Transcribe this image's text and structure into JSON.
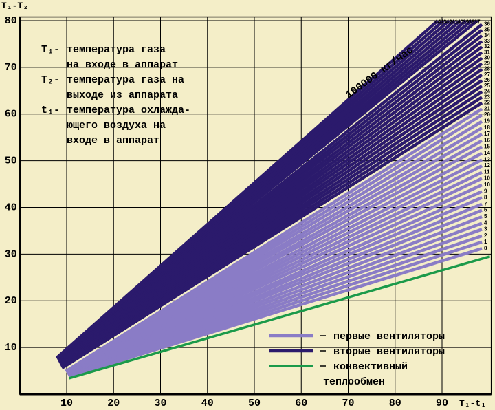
{
  "chart_data": {
    "type": "line",
    "y_axis_label": "T₁-T₂",
    "x_axis_label": "T₁-t₁",
    "xlim": [
      0,
      100.5
    ],
    "ylim": [
      0,
      80.8
    ],
    "xticks": [
      10,
      20,
      30,
      40,
      50,
      60,
      70,
      80,
      90
    ],
    "yticks": [
      10,
      20,
      30,
      40,
      50,
      60,
      70,
      80
    ],
    "grid": true,
    "flow_label": "100000 кг/час",
    "annotations": [
      {
        "term": "T₁-",
        "lines": [
          "температура газа",
          "на входе в аппарат"
        ]
      },
      {
        "term": "T₂-",
        "lines": [
          "температура газа на",
          "выходе из аппарата"
        ]
      },
      {
        "term": "t₁-",
        "lines": [
          "температура охлажда-",
          "ющего воздуха на",
          "входе в аппарат"
        ]
      }
    ],
    "groups": [
      {
        "legend_lines": [
          "первые вентиляторы"
        ],
        "color": "#8a7cc6",
        "lines": [
          {
            "label": "0",
            "x": [
              10.5,
              98.5
            ],
            "y": [
              3.8,
              31.2
            ]
          },
          {
            "label": "1",
            "x": [
              10.5,
              98.5
            ],
            "y": [
              3.8,
              32.6
            ]
          },
          {
            "label": "2",
            "x": [
              10.5,
              98.5
            ],
            "y": [
              3.9,
              33.9
            ]
          },
          {
            "label": "3",
            "x": [
              10.5,
              98.5
            ],
            "y": [
              3.9,
              35.3
            ]
          },
          {
            "label": "4",
            "x": [
              10.4,
              98.5
            ],
            "y": [
              4.0,
              36.6
            ]
          },
          {
            "label": "5",
            "x": [
              10.4,
              98.5
            ],
            "y": [
              4.0,
              38.0
            ]
          },
          {
            "label": "6",
            "x": [
              10.4,
              98.5
            ],
            "y": [
              4.1,
              39.4
            ]
          },
          {
            "label": "7",
            "x": [
              10.3,
              98.5
            ],
            "y": [
              4.1,
              40.7
            ]
          },
          {
            "label": "8",
            "x": [
              10.3,
              98.5
            ],
            "y": [
              4.2,
              42.1
            ]
          },
          {
            "label": "9",
            "x": [
              10.3,
              98.5
            ],
            "y": [
              4.2,
              43.4
            ]
          },
          {
            "label": "10",
            "x": [
              10.2,
              98.5
            ],
            "y": [
              4.3,
              44.8
            ]
          },
          {
            "label": "10",
            "x": [
              10.2,
              98.5
            ],
            "y": [
              4.3,
              46.2
            ]
          },
          {
            "label": "11",
            "x": [
              10.2,
              98.5
            ],
            "y": [
              4.4,
              47.5
            ]
          },
          {
            "label": "12",
            "x": [
              10.1,
              98.5
            ],
            "y": [
              4.4,
              48.9
            ]
          },
          {
            "label": "13",
            "x": [
              10.1,
              98.5
            ],
            "y": [
              4.5,
              50.2
            ]
          },
          {
            "label": "14",
            "x": [
              10.1,
              98.5
            ],
            "y": [
              4.5,
              51.6
            ]
          },
          {
            "label": "15",
            "x": [
              10.0,
              98.5
            ],
            "y": [
              4.6,
              53.0
            ]
          },
          {
            "label": "16",
            "x": [
              10.0,
              98.5
            ],
            "y": [
              4.6,
              54.3
            ]
          },
          {
            "label": "17",
            "x": [
              10.0,
              98.5
            ],
            "y": [
              4.7,
              55.7
            ]
          },
          {
            "label": "18",
            "x": [
              9.9,
              98.5
            ],
            "y": [
              4.7,
              57.0
            ]
          },
          {
            "label": "19",
            "x": [
              9.9,
              98.5
            ],
            "y": [
              4.8,
              58.4
            ]
          },
          {
            "label": "20",
            "x": [
              9.9,
              98.5
            ],
            "y": [
              4.8,
              59.8
            ]
          },
          {
            "label": "21",
            "x": [
              9.8,
              98.5
            ],
            "y": [
              4.9,
              61.1
            ]
          }
        ]
      },
      {
        "legend_lines": [
          "вторые вентиляторы"
        ],
        "color": "#2b1a6c",
        "lines": [
          {
            "label": "22",
            "x": [
              9.0,
              98.5
            ],
            "y": [
              5.6,
              62.4
            ]
          },
          {
            "label": "23",
            "x": [
              9.0,
              98.5
            ],
            "y": [
              5.7,
              63.6
            ]
          },
          {
            "label": "24",
            "x": [
              8.9,
              98.5
            ],
            "y": [
              5.8,
              64.8
            ]
          },
          {
            "label": "25",
            "x": [
              8.9,
              98.5
            ],
            "y": [
              5.9,
              66.0
            ]
          },
          {
            "label": "26",
            "x": [
              8.8,
              98.5
            ],
            "y": [
              6.0,
              67.2
            ]
          },
          {
            "label": "27",
            "x": [
              8.8,
              98.5
            ],
            "y": [
              6.1,
              68.4
            ]
          },
          {
            "label": "28",
            "x": [
              8.7,
              98.5
            ],
            "y": [
              6.2,
              69.6
            ]
          },
          {
            "label": "29",
            "x": [
              8.7,
              98.5
            ],
            "y": [
              6.3,
              70.8
            ]
          },
          {
            "label": "30",
            "x": [
              8.6,
              98.5
            ],
            "y": [
              6.4,
              72.0
            ]
          },
          {
            "label": "31",
            "x": [
              8.6,
              98.5
            ],
            "y": [
              6.5,
              73.2
            ]
          },
          {
            "label": "32",
            "x": [
              8.5,
              98.5
            ],
            "y": [
              6.6,
              74.4
            ]
          },
          {
            "label": "33",
            "x": [
              8.5,
              98.5
            ],
            "y": [
              6.7,
              75.6
            ]
          },
          {
            "label": "34",
            "x": [
              8.4,
              98.5
            ],
            "y": [
              6.8,
              76.8
            ]
          },
          {
            "label": "35",
            "x": [
              8.4,
              98.5
            ],
            "y": [
              6.9,
              78.0
            ]
          },
          {
            "label": "36",
            "x": [
              8.3,
              98.5
            ],
            "y": [
              7.0,
              79.2
            ]
          },
          {
            "label": "37",
            "x": [
              8.3,
              97.5
            ],
            "y": [
              7.1,
              80
            ]
          },
          {
            "label": "38",
            "x": [
              8.2,
              96.3
            ],
            "y": [
              7.2,
              80
            ]
          },
          {
            "label": "39",
            "x": [
              8.2,
              95.1
            ],
            "y": [
              7.3,
              80
            ]
          },
          {
            "label": "40",
            "x": [
              8.1,
              93.9
            ],
            "y": [
              7.4,
              80
            ]
          },
          {
            "label": "41",
            "x": [
              8.1,
              92.7
            ],
            "y": [
              7.5,
              80
            ]
          },
          {
            "label": "42",
            "x": [
              8.0,
              91.5
            ],
            "y": [
              7.6,
              80
            ]
          },
          {
            "label": "43",
            "x": [
              8.0,
              90.3
            ],
            "y": [
              7.7,
              80
            ]
          },
          {
            "label": "44",
            "x": [
              7.9,
              89.1
            ],
            "y": [
              7.8,
              80
            ]
          }
        ]
      },
      {
        "legend_lines": [
          "конвективный",
          "теплообмен"
        ],
        "color": "#1b9a4a",
        "lines": [
          {
            "x": [
              10.5,
              100.2
            ],
            "y": [
              3.4,
              29.5
            ]
          }
        ]
      }
    ]
  }
}
